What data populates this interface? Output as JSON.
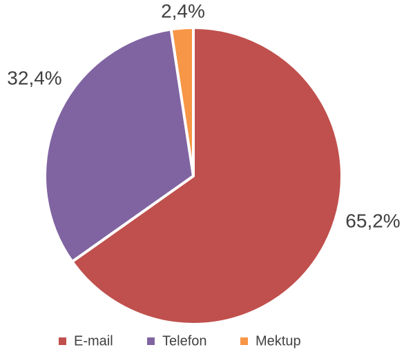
{
  "chart_data": {
    "type": "pie",
    "categories": [
      "E-mail",
      "Telefon",
      "Mektup"
    ],
    "values": [
      65.2,
      32.4,
      2.4
    ],
    "value_labels": [
      "65,2%",
      "32,4%",
      "2,4%"
    ],
    "colors": [
      "#c0504d",
      "#8064a2",
      "#f79646"
    ],
    "legend": "bottom"
  }
}
